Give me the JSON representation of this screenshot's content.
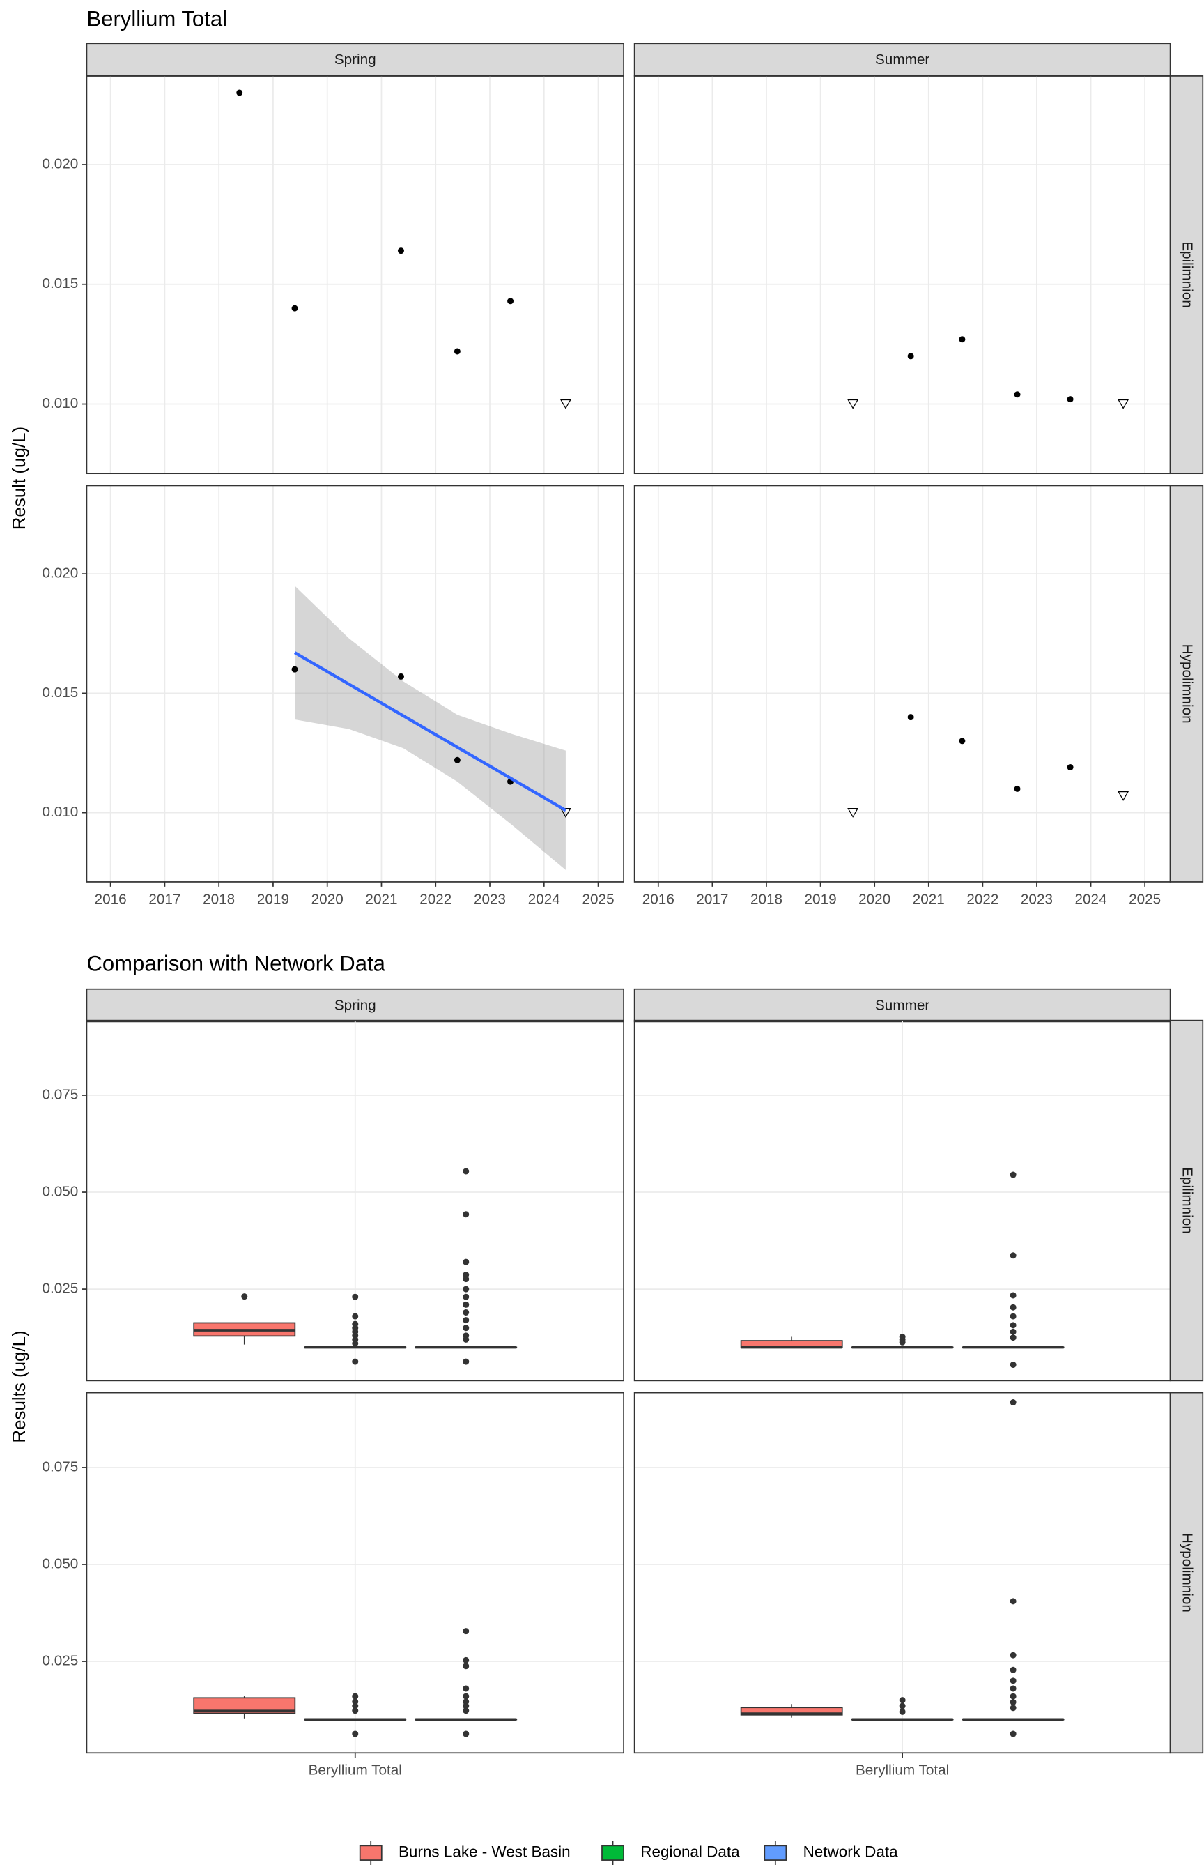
{
  "chart_data": [
    {
      "type": "scatter",
      "title": "Beryllium Total",
      "y_label": "Result (ug/L)",
      "columns": [
        "Spring",
        "Summer"
      ],
      "rows": [
        "Epilimnion",
        "Hypolimnion"
      ],
      "xlim": [
        2015.56,
        2025.47
      ],
      "xticks": [
        2016,
        2017,
        2018,
        2019,
        2020,
        2021,
        2022,
        2023,
        2024,
        2025
      ],
      "ylim": [
        0.0071,
        0.0237
      ],
      "yticks": [
        {
          "value": 0.01,
          "label": "0.010"
        },
        0.015,
        {
          "value": 0.02,
          "label": "0.020"
        }
      ],
      "grid": true,
      "point_color": "#000000",
      "panels": [
        {
          "x": [
            2018.38,
            2019.4,
            2021.36,
            2022.4,
            2023.38,
            2024.4
          ],
          "y": [
            0.023,
            0.014,
            0.0164,
            0.0122,
            0.0143,
            0.01
          ],
          "shape": [
            "circle",
            "circle",
            "circle",
            "circle",
            "circle",
            "triangle"
          ]
        },
        {
          "x": [
            2019.6,
            2020.67,
            2021.62,
            2022.64,
            2023.62,
            2024.6
          ],
          "y": [
            0.01,
            0.012,
            0.0127,
            0.0104,
            0.0102,
            0.01
          ],
          "shape": [
            "triangle",
            "circle",
            "circle",
            "circle",
            "circle",
            "triangle"
          ]
        },
        {
          "x": [
            2019.4,
            2021.36,
            2022.4,
            2023.38,
            2024.4
          ],
          "y": [
            0.016,
            0.0157,
            0.0122,
            0.0113,
            0.01
          ],
          "shape": [
            "circle",
            "circle",
            "circle",
            "circle",
            "triangle"
          ],
          "trend": {
            "color": "#3366ff",
            "x": [
              2019.4,
              2024.4
            ],
            "y": [
              0.0167,
              0.0101
            ]
          },
          "band": {
            "color": "#999999",
            "x": [
              2019.4,
              2020.4,
              2021.4,
              2022.4,
              2023.4,
              2024.4
            ],
            "lower": [
              0.0139,
              0.0135,
              0.0127,
              0.0113,
              0.0095,
              0.0076
            ],
            "upper": [
              0.0195,
              0.0173,
              0.0155,
              0.0141,
              0.0133,
              0.0126
            ]
          }
        },
        {
          "x": [
            2019.6,
            2020.67,
            2021.62,
            2022.64,
            2023.62,
            2024.6
          ],
          "y": [
            0.01,
            0.014,
            0.013,
            0.011,
            0.0119,
            0.0107
          ],
          "shape": [
            "triangle",
            "circle",
            "circle",
            "circle",
            "circle",
            "triangle"
          ]
        }
      ]
    },
    {
      "type": "box",
      "title": "Comparison with Network Data",
      "y_label": "Results (ug/L)",
      "columns": [
        "Spring",
        "Summer"
      ],
      "rows": [
        "Epilimnion",
        "Hypolimnion"
      ],
      "category": "Beryllium Total",
      "ylim": [
        0.0014,
        0.0943
      ],
      "yticks": [
        0.025,
        {
          "value": 0.05,
          "label": "0.050"
        },
        0.075
      ],
      "grid": true,
      "legend": "bottom",
      "series": [
        {
          "name": "Burns Lake - West Basin",
          "color": "#f8766d"
        },
        {
          "name": "Regional Data",
          "color": "#00ba38"
        },
        {
          "name": "Network Data",
          "color": "#619cff"
        }
      ],
      "panels": [
        {
          "boxes": [
            {
              "low": 0.0107,
              "q1": 0.0129,
              "median": 0.0144,
              "q3": 0.0163,
              "high": 0.0163,
              "outliers": [
                0.0231
              ]
            },
            {
              "low": 0.01,
              "q1": 0.01,
              "median": 0.01,
              "q3": 0.01,
              "high": 0.01,
              "outliers": [
                0.023,
                0.018,
                0.016,
                0.015,
                0.014,
                0.013,
                0.012,
                0.011,
                0.0063
              ]
            },
            {
              "low": 0.01,
              "q1": 0.01,
              "median": 0.01,
              "q3": 0.01,
              "high": 0.01,
              "outliers": [
                0.0554,
                0.0443,
                0.032,
                0.0287,
                0.0276,
                0.025,
                0.023,
                0.021,
                0.019,
                0.017,
                0.015,
                0.013,
                0.012,
                0.0063
              ]
            }
          ]
        },
        {
          "boxes": [
            {
              "low": 0.01,
              "q1": 0.01,
              "median": 0.01,
              "q3": 0.0117,
              "high": 0.0127,
              "outliers": []
            },
            {
              "low": 0.01,
              "q1": 0.01,
              "median": 0.01,
              "q3": 0.01,
              "high": 0.01,
              "outliers": [
                0.0127,
                0.012,
                0.0113
              ]
            },
            {
              "low": 0.01,
              "q1": 0.01,
              "median": 0.01,
              "q3": 0.01,
              "high": 0.01,
              "outliers": [
                0.0545,
                0.0337,
                0.0234,
                0.0203,
                0.018,
                0.0157,
                0.014,
                0.0125,
                0.0055
              ]
            }
          ]
        },
        {
          "boxes": [
            {
              "low": 0.0103,
              "q1": 0.0116,
              "median": 0.0122,
              "q3": 0.0156,
              "high": 0.016,
              "outliers": []
            },
            {
              "low": 0.01,
              "q1": 0.01,
              "median": 0.01,
              "q3": 0.01,
              "high": 0.01,
              "outliers": [
                0.016,
                0.0146,
                0.0135,
                0.0123,
                0.0063
              ]
            },
            {
              "low": 0.01,
              "q1": 0.01,
              "median": 0.01,
              "q3": 0.01,
              "high": 0.01,
              "outliers": [
                0.0328,
                0.0253,
                0.0238,
                0.018,
                0.016,
                0.0146,
                0.0135,
                0.0123,
                0.0063
              ]
            }
          ]
        },
        {
          "boxes": [
            {
              "low": 0.0105,
              "q1": 0.0112,
              "median": 0.0115,
              "q3": 0.0131,
              "high": 0.014,
              "outliers": []
            },
            {
              "low": 0.01,
              "q1": 0.01,
              "median": 0.01,
              "q3": 0.01,
              "high": 0.01,
              "outliers": [
                0.015,
                0.0135,
                0.012
              ]
            },
            {
              "low": 0.01,
              "q1": 0.01,
              "median": 0.01,
              "q3": 0.01,
              "high": 0.01,
              "outliers": [
                0.0918,
                0.0405,
                0.0266,
                0.0228,
                0.02,
                0.018,
                0.016,
                0.0145,
                0.013,
                0.0063
              ]
            }
          ]
        }
      ]
    }
  ]
}
